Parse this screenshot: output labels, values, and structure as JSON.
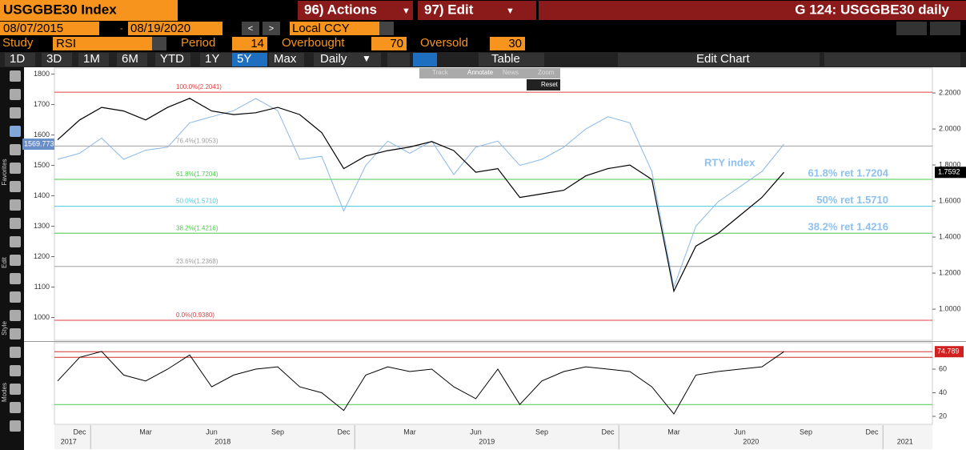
{
  "header": {
    "actions": "96) Actions",
    "edit": "97) Edit",
    "chart_id": "G 124: USGGBE30 daily",
    "start_date": "08/07/2015",
    "end_date": "08/19/2020",
    "currency": "Local CCY",
    "study_label": "Study",
    "period_label": "Period",
    "period": 14,
    "overbought_label": "Overbought",
    "oversold_label": "Oversold"
  },
  "ranges": [
    "1D",
    "3D",
    "1M",
    "6M",
    "YTD",
    "1Y",
    "5Y",
    "Max"
  ],
  "active_range": "5Y",
  "frequency": "Daily",
  "table": "Table",
  "edit_chart": "Edit Chart",
  "overlay": [
    "Track",
    "Annotate",
    "News",
    "Zoom"
  ],
  "reset": "Reset",
  "sidebar": [
    "Favorites",
    "Edit",
    "Style",
    "Modes"
  ],
  "chart_data": [
    {
      "type": "line",
      "series": [
        {
          "name": "USGGBE30 Index",
          "color": "#000000",
          "axis": "y2",
          "values": [
            1.94,
            2.05,
            2.12,
            2.1,
            2.05,
            2.12,
            2.17,
            2.1,
            2.08,
            2.09,
            2.12,
            2.08,
            1.98,
            1.78,
            1.85,
            1.88,
            1.9,
            1.93,
            1.88,
            1.76,
            1.78,
            1.62,
            1.64,
            1.66,
            1.74,
            1.78,
            1.8,
            1.72,
            1.1,
            1.35,
            1.42,
            1.52,
            1.62,
            1.7592,
            null,
            null,
            null,
            null,
            null,
            null
          ]
        },
        {
          "name": "RTY index",
          "color": "#8ab8e8",
          "values": [
            1520,
            1540,
            1590,
            1520,
            1550,
            1560,
            1640,
            1660,
            1680,
            1720,
            1680,
            1520,
            1530,
            1350,
            1500,
            1580,
            1540,
            1580,
            1470,
            1560,
            1580,
            1500,
            1520,
            1560,
            1620,
            1660,
            1640,
            1480,
            1100,
            1300,
            1380,
            1430,
            1480,
            1569.773,
            null,
            null,
            null,
            null,
            null,
            null
          ]
        }
      ],
      "ylim": [
        925,
        1820
      ],
      "yticks": [
        1000,
        1100,
        1200,
        1300,
        1400,
        1500,
        1600,
        1700,
        1800
      ],
      "y2lim": [
        0.827,
        2.338
      ],
      "y2ticks": [
        {
          "value": 1.0,
          "label": "1.0000"
        },
        {
          "value": 1.2,
          "label": "1.2000"
        },
        {
          "value": 1.4,
          "label": "1.4000"
        },
        {
          "value": 1.6,
          "label": "1.6000"
        },
        {
          "value": 1.8,
          "label": "1.8000"
        },
        {
          "value": 2.0,
          "label": "2.0000"
        },
        {
          "value": 2.2,
          "label": "2.2000"
        }
      ],
      "levels": [
        {
          "label": "100.0%(2.2041)",
          "value": 2.2041,
          "color": "#e04040"
        },
        {
          "label": "76.4%(1.9053)",
          "value": 1.9053,
          "color": "#a0a0a0"
        },
        {
          "label": "61.8%(1.7204)",
          "value": 1.7204,
          "color": "#4cc84c"
        },
        {
          "label": "50.0%(1.5710)",
          "value": 1.571,
          "color": "#4cc8d8"
        },
        {
          "label": "38.2%(1.4216)",
          "value": 1.4216,
          "color": "#4cc84c"
        },
        {
          "label": "23.6%(1.2368)",
          "value": 1.2368,
          "color": "#a0a0a0"
        },
        {
          "label": "0.0%(0.9380)",
          "value": 0.938,
          "color": "#e04040"
        }
      ],
      "annotations": [
        {
          "text": "61.8% ret 1.7204",
          "value": 1.7204
        },
        {
          "text": "50% ret 1.5710",
          "value": 1.571
        },
        {
          "text": "38.2% ret 1.4216",
          "value": 1.4216
        }
      ]
    },
    {
      "type": "line",
      "categories": [
        null,
        "Dec",
        null,
        null,
        "Mar",
        null,
        null,
        "Jun",
        null,
        null,
        "Sep",
        null,
        null,
        "Dec",
        null,
        null,
        "Mar",
        null,
        null,
        "Jun",
        null,
        null,
        "Sep",
        null,
        null,
        "Dec",
        null,
        null,
        "Mar",
        null,
        null,
        "Jun",
        null,
        null,
        "Sep",
        null,
        null,
        "Dec",
        null,
        null
      ],
      "years": [
        "2017",
        "2018",
        "2019",
        "2020",
        "2021"
      ],
      "series": [
        {
          "name": "RSI",
          "color": "#000000",
          "values": [
            50,
            70,
            75,
            55,
            50,
            60,
            72,
            45,
            55,
            60,
            62,
            45,
            40,
            25,
            55,
            62,
            58,
            60,
            45,
            35,
            60,
            30,
            50,
            58,
            62,
            60,
            58,
            45,
            22,
            55,
            58,
            60,
            62,
            74.789,
            null,
            null,
            null,
            null,
            null,
            null
          ]
        }
      ],
      "ylim": [
        13.2,
        82.4
      ],
      "yticks": [
        20,
        40,
        60
      ],
      "overbought": 70,
      "oversold": 30
    }
  ]
}
